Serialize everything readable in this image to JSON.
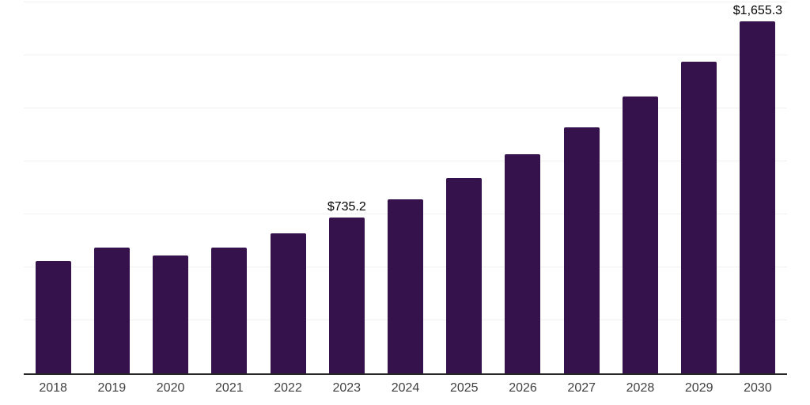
{
  "chart_data": {
    "type": "bar",
    "title": "",
    "xlabel": "",
    "ylabel": "",
    "categories": [
      "2018",
      "2019",
      "2020",
      "2021",
      "2022",
      "2023",
      "2024",
      "2025",
      "2026",
      "2027",
      "2028",
      "2029",
      "2030"
    ],
    "values": [
      530,
      592,
      554,
      594,
      658,
      735.2,
      819,
      921,
      1033,
      1158,
      1303,
      1467,
      1655.3
    ],
    "labeled_points": [
      {
        "category": "2023",
        "label": "$735.2"
      },
      {
        "category": "2030",
        "label": "$1,655.3"
      }
    ],
    "ylim": [
      0,
      1750
    ],
    "gridline_step": 250,
    "grid": "horizontal-only",
    "legend": "none",
    "y_axis_tick_labels": "none",
    "colors": {
      "bar": "#36124D",
      "gridline": "#f0f0f0",
      "axis_line": "#262626",
      "tick_label": "#404040",
      "data_label": "#000000",
      "background": "#ffffff"
    }
  }
}
